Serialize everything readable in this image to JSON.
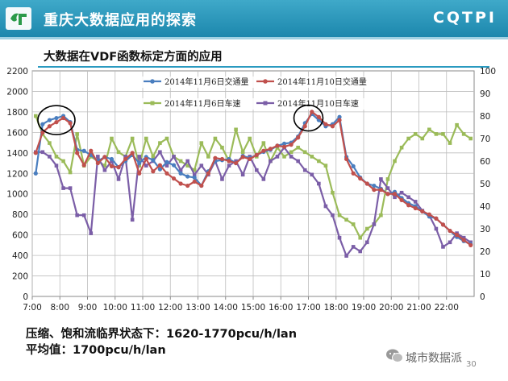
{
  "header": {
    "title": "重庆大数据应用的探索",
    "brand": "CQTPI",
    "logo_icon": "cqtpi-logo-icon"
  },
  "subtitle": "大数据在VDF函数标定方面的应用",
  "footer": {
    "line1": "压缩、饱和流临界状态下：1620-1770pcu/h/lan",
    "line2": "平均值：1700pcu/h/lan",
    "wechat_brand": "城市数据派",
    "wechat_icon": "wechat-icon",
    "page_number": "30"
  },
  "colors": {
    "header": "#1c87ad",
    "flow_nov6": "#4a7ebf",
    "flow_nov10": "#c0504d",
    "speed_nov6": "#9bbb59",
    "speed_nov10": "#7b5ea7"
  },
  "chart_data": {
    "type": "line",
    "x": [
      "7:00",
      "7:15",
      "7:30",
      "7:45",
      "8:00",
      "8:15",
      "8:30",
      "8:45",
      "9:00",
      "9:15",
      "9:30",
      "9:45",
      "10:00",
      "10:15",
      "10:30",
      "10:45",
      "11:00",
      "11:15",
      "11:30",
      "11:45",
      "12:00",
      "12:15",
      "12:30",
      "12:45",
      "13:00",
      "13:15",
      "13:30",
      "13:45",
      "14:00",
      "14:15",
      "14:30",
      "14:45",
      "15:00",
      "15:15",
      "15:30",
      "15:45",
      "16:00",
      "16:15",
      "16:30",
      "16:45",
      "17:00",
      "17:15",
      "17:30",
      "17:45",
      "18:00",
      "18:15",
      "18:30",
      "18:45",
      "19:00",
      "19:15",
      "19:30",
      "19:45",
      "20:00",
      "20:15",
      "20:30",
      "20:45",
      "21:00",
      "21:15",
      "21:30",
      "21:45",
      "22:00",
      "22:15",
      "22:30",
      "22:45"
    ],
    "x_ticks": [
      "7:00",
      "8:00",
      "9:00",
      "10:00",
      "11:00",
      "12:00",
      "13:00",
      "14:00",
      "15:00",
      "16:00",
      "17:00",
      "18:00",
      "19:00",
      "20:00",
      "21:00",
      "22:00"
    ],
    "y_left": {
      "min": 0,
      "max": 2200,
      "ticks": [
        0,
        200,
        400,
        600,
        800,
        1000,
        1200,
        1400,
        1600,
        1800,
        2000,
        2200
      ]
    },
    "y_right": {
      "min": 0,
      "max": 100,
      "ticks": [
        0,
        10,
        20,
        30,
        40,
        50,
        60,
        70,
        80,
        90,
        100
      ]
    },
    "grid": true,
    "legend_position": "top",
    "annotations": [
      "circle-8:00-peak",
      "circle-17:00-peak"
    ],
    "series": [
      {
        "name": "2014年11月6日交通量",
        "axis": "left",
        "color": "#4a7ebf",
        "marker": "circle",
        "values": [
          1200,
          1680,
          1720,
          1740,
          1760,
          1700,
          1430,
          1420,
          1380,
          1320,
          1360,
          1340,
          1260,
          1320,
          1380,
          1300,
          1360,
          1330,
          1240,
          1310,
          1280,
          1200,
          1170,
          1160,
          1080,
          1220,
          1320,
          1330,
          1340,
          1300,
          1370,
          1350,
          1380,
          1410,
          1430,
          1470,
          1490,
          1500,
          1560,
          1690,
          1780,
          1720,
          1660,
          1680,
          1750,
          1360,
          1270,
          1160,
          1100,
          1080,
          1050,
          1000,
          1020,
          960,
          910,
          880,
          830,
          780,
          760,
          700,
          640,
          580,
          540,
          510
        ]
      },
      {
        "name": "2014年11月10日交通量",
        "axis": "left",
        "color": "#c0504d",
        "marker": "circle",
        "values": [
          1400,
          1600,
          1660,
          1700,
          1740,
          1690,
          1400,
          1280,
          1420,
          1300,
          1360,
          1270,
          1260,
          1340,
          1400,
          1200,
          1340,
          1220,
          1280,
          1200,
          1150,
          1100,
          1080,
          1120,
          1080,
          1200,
          1350,
          1340,
          1320,
          1300,
          1360,
          1340,
          1380,
          1420,
          1440,
          1470,
          1460,
          1480,
          1550,
          1660,
          1800,
          1750,
          1680,
          1660,
          1720,
          1340,
          1200,
          1150,
          1100,
          1040,
          1040,
          1000,
          1000,
          940,
          890,
          860,
          830,
          800,
          760,
          700,
          640,
          600,
          550,
          500
        ]
      },
      {
        "name": "2014年11月6日车速",
        "axis": "right",
        "color": "#9bbb59",
        "marker": "square",
        "values": [
          80,
          72,
          68,
          62,
          60,
          55,
          72,
          58,
          62,
          60,
          58,
          70,
          64,
          62,
          70,
          58,
          70,
          62,
          68,
          70,
          62,
          60,
          58,
          56,
          68,
          62,
          70,
          66,
          60,
          74,
          64,
          70,
          62,
          68,
          60,
          66,
          62,
          64,
          66,
          64,
          62,
          60,
          58,
          46,
          36,
          34,
          32,
          26,
          30,
          32,
          36,
          52,
          60,
          66,
          70,
          72,
          70,
          74,
          72,
          72,
          68,
          76,
          72,
          70
        ]
      },
      {
        "name": "2014年11月10日车速",
        "axis": "right",
        "color": "#7b5ea7",
        "marker": "square",
        "values": [
          64,
          64,
          62,
          58,
          48,
          48,
          36,
          36,
          28,
          62,
          56,
          60,
          52,
          62,
          34,
          62,
          58,
          60,
          64,
          58,
          62,
          56,
          60,
          54,
          58,
          54,
          60,
          52,
          58,
          60,
          54,
          62,
          56,
          52,
          60,
          62,
          66,
          62,
          60,
          56,
          54,
          50,
          40,
          36,
          26,
          18,
          22,
          20,
          24,
          32,
          52,
          48,
          44,
          46,
          44,
          42,
          38,
          36,
          30,
          22,
          24,
          28,
          26,
          24
        ]
      }
    ]
  }
}
